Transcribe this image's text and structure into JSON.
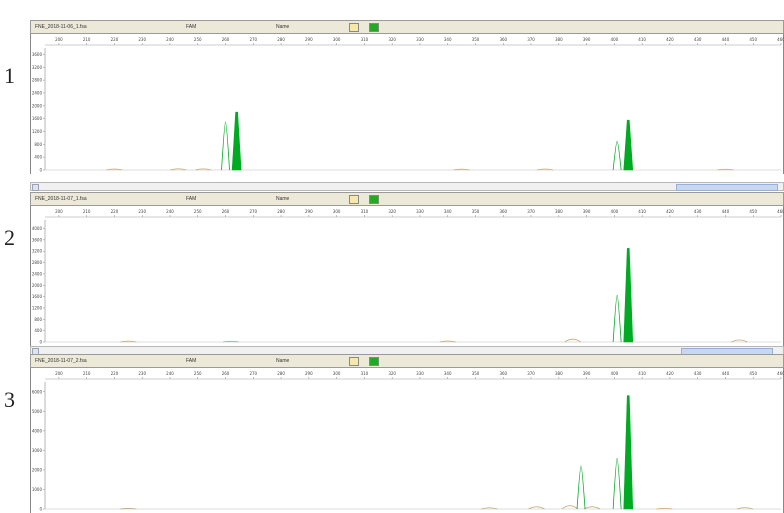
{
  "panels": [
    {
      "label": "1",
      "file": "FNE_2018-11-06_1.fsa",
      "field2": "FAM",
      "field3": "Name"
    },
    {
      "label": "2",
      "file": "FNE_2018-11-07_1.fsa",
      "field2": "FAM",
      "field3": "Name"
    },
    {
      "label": "3",
      "file": "FNE_2018-11-07_2.fsa",
      "field2": "FAM",
      "field3": "Name"
    }
  ],
  "colors": {
    "peak": "#00aa22",
    "trace": "#00aa22",
    "noise": "#c8a878",
    "header_icon_green": "#22aa22",
    "header_icon_yellow": "#f0c040"
  },
  "icons": [
    "warning-icon",
    "dye-color-icon"
  ],
  "chart_data": [
    {
      "type": "line",
      "title": "",
      "xlabel": "",
      "ylabel": "",
      "xlim": [
        195,
        460
      ],
      "x_ticks": [
        200,
        210,
        220,
        230,
        240,
        250,
        260,
        270,
        280,
        290,
        300,
        310,
        320,
        330,
        340,
        350,
        360,
        370,
        380,
        390,
        400,
        410,
        420,
        430,
        440,
        450,
        460
      ],
      "y_ticks": [
        0,
        400,
        800,
        1200,
        1600,
        2000,
        2400,
        2800,
        3200,
        3600
      ],
      "ylim": [
        0,
        3800
      ],
      "peaks": [
        {
          "x": 264,
          "y": 1800,
          "filled": true
        },
        {
          "x": 260,
          "y": 1500,
          "filled": false
        },
        {
          "x": 405,
          "y": 1550,
          "filled": true
        },
        {
          "x": 401,
          "y": 900,
          "filled": false
        }
      ],
      "noise": [
        [
          220,
          60
        ],
        [
          243,
          80
        ],
        [
          252,
          70
        ],
        [
          345,
          55
        ],
        [
          375,
          60
        ],
        [
          440,
          45
        ]
      ]
    },
    {
      "type": "line",
      "title": "",
      "xlabel": "",
      "ylabel": "",
      "xlim": [
        195,
        460
      ],
      "x_ticks": [
        200,
        210,
        220,
        230,
        240,
        250,
        260,
        270,
        280,
        290,
        300,
        310,
        320,
        330,
        340,
        350,
        360,
        370,
        380,
        390,
        400,
        410,
        420,
        430,
        440,
        450,
        460
      ],
      "y_ticks": [
        0,
        400,
        800,
        1200,
        1600,
        2000,
        2400,
        2800,
        3200,
        3600,
        4000
      ],
      "ylim": [
        0,
        4300
      ],
      "peaks": [
        {
          "x": 405,
          "y": 3300,
          "filled": true
        },
        {
          "x": 401,
          "y": 1650,
          "filled": false
        }
      ],
      "noise": [
        [
          225,
          60
        ],
        [
          262,
          50
        ],
        [
          340,
          70
        ],
        [
          385,
          200
        ],
        [
          445,
          140
        ]
      ]
    },
    {
      "type": "line",
      "title": "",
      "xlabel": "",
      "ylabel": "",
      "xlim": [
        195,
        460
      ],
      "x_ticks": [
        200,
        210,
        220,
        230,
        240,
        250,
        260,
        270,
        280,
        290,
        300,
        310,
        320,
        330,
        340,
        350,
        360,
        370,
        380,
        390,
        400,
        410,
        420,
        430,
        440,
        450,
        460
      ],
      "y_ticks": [
        0,
        1000,
        2000,
        3000,
        4000,
        5000,
        6000
      ],
      "ylim": [
        0,
        6500
      ],
      "peaks": [
        {
          "x": 405,
          "y": 5800,
          "filled": true
        },
        {
          "x": 401,
          "y": 2600,
          "filled": false
        },
        {
          "x": 388,
          "y": 2200,
          "filled": false
        }
      ],
      "noise": [
        [
          225,
          60
        ],
        [
          355,
          130
        ],
        [
          372,
          230
        ],
        [
          384,
          340
        ],
        [
          392,
          230
        ],
        [
          418,
          80
        ],
        [
          447,
          140
        ]
      ]
    }
  ]
}
